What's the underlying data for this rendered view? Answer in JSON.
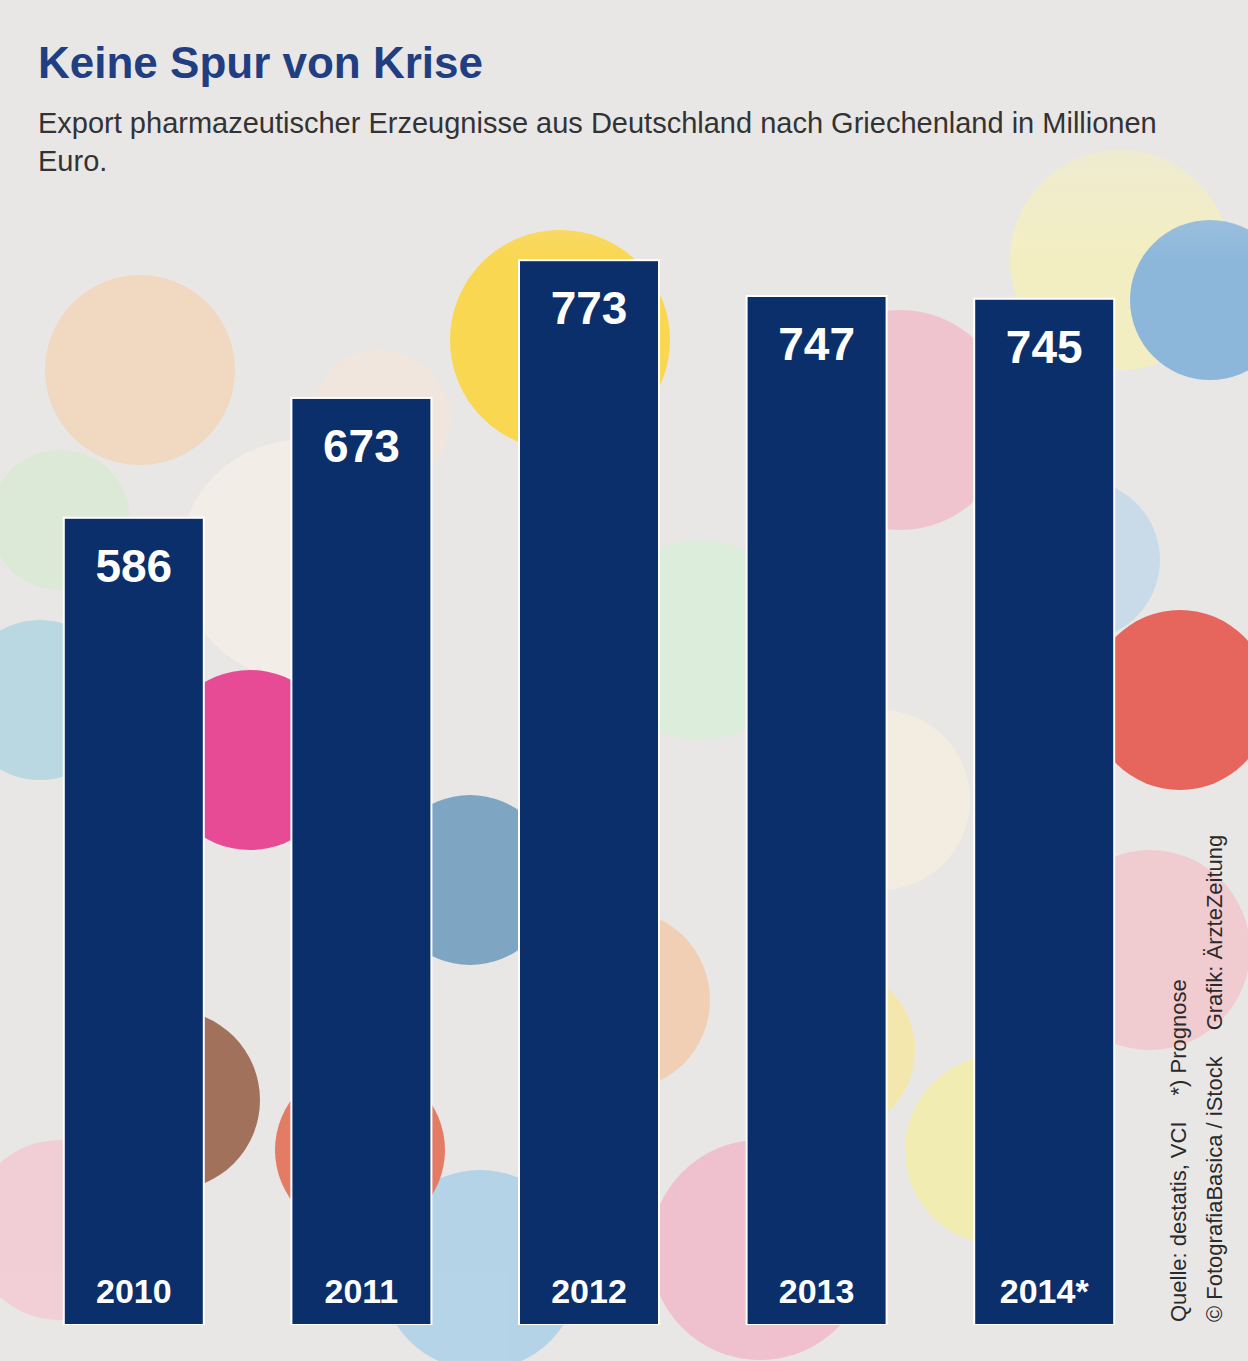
{
  "chart_data": {
    "type": "bar",
    "title": "Keine Spur von Krise",
    "subtitle": "Export pharmazeutischer Erzeugnisse aus Deutschland nach Griechenland in Millionen Euro.",
    "categories": [
      "2010",
      "2011",
      "2012",
      "2013",
      "2014*"
    ],
    "values": [
      586,
      673,
      773,
      747,
      745
    ],
    "color": "#0b2f6b",
    "ylim": [
      0,
      800
    ],
    "data_labels": true,
    "tick_labels": "x",
    "annotations": [
      "Quelle: destatis, VCI",
      "*) Prognose",
      "© FotografiaBasica / iStock",
      "Grafik: ÄrzteZeitung"
    ]
  }
}
